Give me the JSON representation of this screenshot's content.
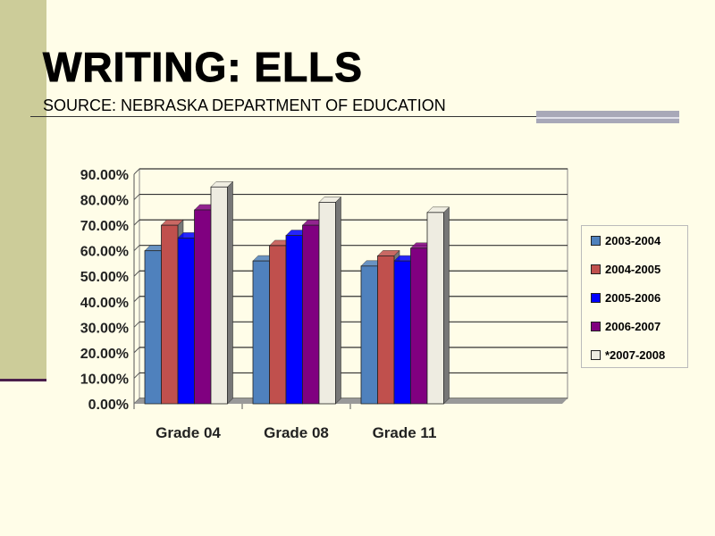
{
  "slide": {
    "title": "WRITING: ELLS",
    "subtitle": "SOURCE: NEBRASKA DEPARTMENT OF EDUCATION"
  },
  "chart_data": {
    "type": "bar",
    "title": "",
    "categories": [
      "Grade 04",
      "Grade 08",
      "Grade 11"
    ],
    "series": [
      {
        "name": "2003-2004",
        "color": "#4f81bd",
        "values": [
          60,
          56,
          54
        ]
      },
      {
        "name": "2004-2005",
        "color": "#c0504d",
        "values": [
          70,
          62,
          58
        ]
      },
      {
        "name": "2005-2006",
        "color": "#0000ff",
        "values": [
          65,
          66,
          56
        ]
      },
      {
        "name": "2006-2007",
        "color": "#800080",
        "values": [
          76,
          70,
          61
        ]
      },
      {
        "name": "*2007-2008",
        "color": "#eeece1",
        "values": [
          85,
          79,
          75
        ]
      }
    ],
    "yticks": [
      "0.00%",
      "10.00%",
      "20.00%",
      "30.00%",
      "40.00%",
      "50.00%",
      "60.00%",
      "70.00%",
      "80.00%",
      "90.00%"
    ],
    "ylim": [
      0,
      90
    ],
    "xlabel": "",
    "ylabel": "",
    "grid": true,
    "legend": "right"
  }
}
